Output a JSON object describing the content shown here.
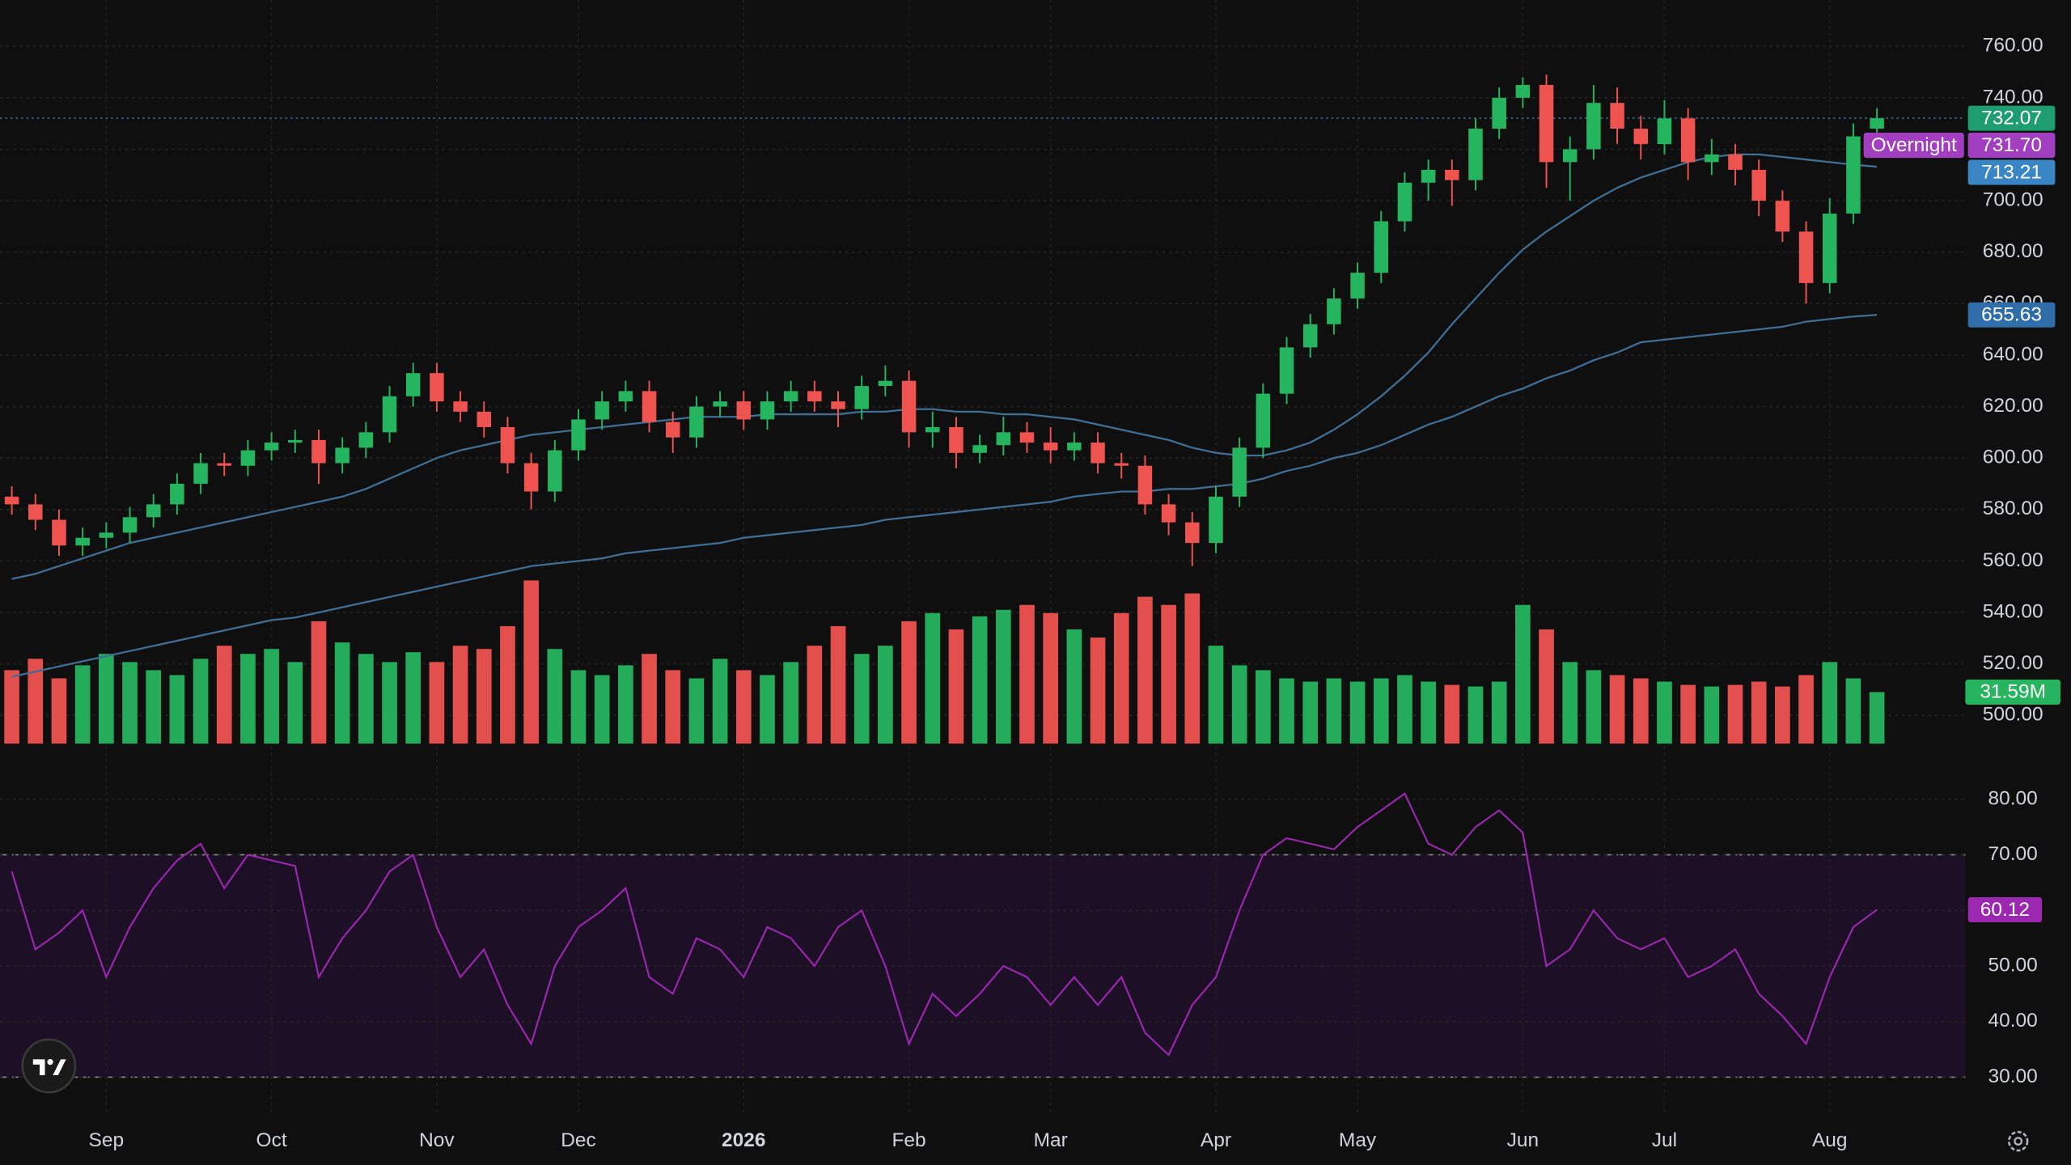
{
  "chart_data": {
    "type": "candlestick",
    "categories": [
      null,
      null,
      null,
      null,
      "Sep",
      null,
      null,
      null,
      null,
      null,
      null,
      "Oct",
      null,
      null,
      null,
      null,
      null,
      null,
      "Nov",
      null,
      null,
      null,
      null,
      null,
      "Dec",
      null,
      null,
      null,
      null,
      null,
      null,
      "2026",
      null,
      null,
      null,
      null,
      null,
      null,
      "Feb",
      null,
      null,
      null,
      null,
      null,
      "Mar",
      null,
      null,
      null,
      null,
      null,
      null,
      "Apr",
      null,
      null,
      null,
      null,
      null,
      "May",
      null,
      null,
      null,
      null,
      null,
      null,
      "Jun",
      null,
      null,
      null,
      null,
      null,
      "Jul",
      null,
      null,
      null,
      null,
      null,
      null,
      "Aug",
      null,
      null
    ],
    "open": [
      585,
      582,
      576,
      566,
      569,
      571,
      577,
      582,
      590,
      598,
      597,
      603,
      606,
      607,
      598,
      604,
      610,
      624,
      633,
      622,
      618,
      612,
      598,
      587,
      603,
      615,
      622,
      626,
      614,
      608,
      620,
      622,
      615,
      622,
      626,
      622,
      619,
      628,
      630,
      610,
      612,
      602,
      605,
      610,
      606,
      603,
      606,
      598,
      597,
      582,
      575,
      567,
      585,
      604,
      625,
      643,
      652,
      662,
      672,
      692,
      707,
      712,
      708,
      728,
      740,
      745,
      715,
      720,
      738,
      728,
      722,
      732,
      715,
      718,
      712,
      700,
      688,
      668,
      695,
      728
    ],
    "high": [
      589,
      586,
      580,
      573,
      575,
      581,
      586,
      594,
      602,
      602,
      607,
      610,
      611,
      611,
      608,
      614,
      628,
      637,
      637,
      626,
      622,
      616,
      602,
      607,
      619,
      626,
      630,
      630,
      618,
      624,
      626,
      626,
      626,
      630,
      630,
      626,
      632,
      636,
      634,
      618,
      616,
      609,
      616,
      614,
      612,
      610,
      610,
      602,
      601,
      586,
      579,
      589,
      608,
      629,
      647,
      656,
      666,
      676,
      696,
      711,
      716,
      716,
      732,
      744,
      748,
      749,
      725,
      745,
      744,
      733,
      739,
      736,
      724,
      722,
      716,
      704,
      692,
      701,
      730,
      736
    ],
    "low": [
      578,
      572,
      562,
      562,
      565,
      567,
      573,
      578,
      586,
      593,
      593,
      599,
      602,
      590,
      594,
      600,
      606,
      620,
      618,
      614,
      608,
      594,
      580,
      583,
      599,
      611,
      618,
      610,
      602,
      604,
      616,
      611,
      611,
      618,
      618,
      612,
      615,
      624,
      604,
      604,
      596,
      598,
      601,
      602,
      598,
      599,
      594,
      592,
      578,
      570,
      558,
      563,
      581,
      600,
      621,
      639,
      648,
      658,
      668,
      688,
      700,
      698,
      704,
      724,
      736,
      705,
      700,
      716,
      722,
      716,
      718,
      708,
      710,
      706,
      694,
      684,
      660,
      664,
      691,
      724
    ],
    "close": [
      582,
      576,
      566,
      569,
      571,
      577,
      582,
      590,
      598,
      597,
      603,
      606,
      607,
      598,
      604,
      610,
      624,
      633,
      622,
      618,
      612,
      598,
      587,
      603,
      615,
      622,
      626,
      614,
      608,
      620,
      622,
      615,
      622,
      626,
      622,
      619,
      628,
      630,
      610,
      612,
      602,
      605,
      610,
      606,
      603,
      606,
      598,
      597,
      582,
      575,
      567,
      585,
      604,
      625,
      643,
      652,
      662,
      672,
      692,
      707,
      712,
      708,
      728,
      740,
      745,
      715,
      720,
      738,
      728,
      722,
      732,
      715,
      718,
      712,
      700,
      688,
      668,
      695,
      725,
      732.07
    ],
    "up_color": "#26b55f",
    "down_color": "#ef5350",
    "ylim": [
      489,
      778
    ],
    "yticks": [
      {
        "value": 500,
        "label": "500.00"
      },
      {
        "value": 520,
        "label": "520.00"
      },
      {
        "value": 540,
        "label": "540.00"
      },
      {
        "value": 560,
        "label": "560.00"
      },
      {
        "value": 580,
        "label": "580.00"
      },
      {
        "value": 600,
        "label": "600.00"
      },
      {
        "value": 620,
        "label": "620.00"
      },
      {
        "value": 640,
        "label": "640.00"
      },
      {
        "value": 660,
        "label": "660.00"
      },
      {
        "value": 680,
        "label": "680.00"
      },
      {
        "value": 700,
        "label": "700.00"
      },
      {
        "value": 720,
        "label": "720.00"
      },
      {
        "value": 740,
        "label": "740.00"
      },
      {
        "value": 760,
        "label": "760.00"
      }
    ],
    "grid": true,
    "overlays": [
      {
        "color": "#3f6f95",
        "badge_color": "#3a86c4",
        "values": [
          553,
          555,
          558,
          561,
          564,
          567,
          569,
          571,
          573,
          575,
          577,
          579,
          581,
          583,
          585,
          588,
          592,
          596,
          600,
          603,
          605,
          607,
          609,
          610,
          611,
          612,
          613,
          614,
          615,
          616,
          616,
          616,
          617,
          617,
          617,
          617,
          618,
          618,
          619,
          619,
          618,
          618,
          617,
          617,
          616,
          615,
          613,
          611,
          609,
          607,
          604,
          602,
          601,
          601,
          603,
          606,
          611,
          617,
          624,
          632,
          641,
          652,
          662,
          672,
          681,
          688,
          694,
          700,
          705,
          709,
          712,
          715,
          717,
          718,
          718,
          717,
          716,
          715,
          714,
          713.21
        ]
      },
      {
        "color": "#3f6f95",
        "badge_color": "#2f6ea8",
        "values": [
          515,
          517,
          519,
          521,
          523,
          525,
          527,
          529,
          531,
          533,
          535,
          537,
          538,
          540,
          542,
          544,
          546,
          548,
          550,
          552,
          554,
          556,
          558,
          559,
          560,
          561,
          563,
          564,
          565,
          566,
          567,
          569,
          570,
          571,
          572,
          573,
          574,
          576,
          577,
          578,
          579,
          580,
          581,
          582,
          583,
          585,
          586,
          587,
          587,
          588,
          588,
          589,
          590,
          592,
          595,
          597,
          600,
          602,
          605,
          609,
          613,
          616,
          620,
          624,
          627,
          631,
          634,
          638,
          641,
          645,
          646,
          647,
          648,
          649,
          650,
          651,
          653,
          654,
          655,
          655.63
        ]
      }
    ],
    "price_line_color": "#3d6fa0",
    "last_badge_color": "#1e9e6e",
    "overnight": {
      "label": "Overnight",
      "price": {
        "value": 731.7,
        "label": "731.70"
      },
      "color": "#a23fc0"
    },
    "volume": {
      "values": [
        45,
        52,
        40,
        48,
        55,
        50,
        45,
        42,
        52,
        60,
        55,
        58,
        50,
        75,
        62,
        55,
        50,
        56,
        50,
        60,
        58,
        72,
        100,
        58,
        45,
        42,
        48,
        55,
        45,
        40,
        52,
        45,
        42,
        50,
        60,
        72,
        55,
        60,
        75,
        80,
        70,
        78,
        82,
        85,
        80,
        70,
        65,
        80,
        90,
        85,
        92,
        60,
        48,
        45,
        40,
        38,
        40,
        38,
        40,
        42,
        38,
        36,
        35,
        38,
        85,
        70,
        50,
        45,
        42,
        40,
        38,
        36,
        35,
        36,
        38,
        35,
        42,
        50,
        40,
        31.59
      ],
      "ylim": [
        0,
        140
      ],
      "last": {
        "value": 31.59,
        "label": "31.59M"
      }
    },
    "rsi": {
      "values": [
        67,
        53,
        56,
        60,
        48,
        57,
        64,
        69,
        72,
        64,
        70,
        69,
        68,
        48,
        55,
        60,
        67,
        70,
        57,
        48,
        53,
        43,
        36,
        50,
        57,
        60,
        64,
        48,
        45,
        55,
        53,
        48,
        57,
        55,
        50,
        57,
        60,
        50,
        36,
        45,
        41,
        45,
        50,
        48,
        43,
        48,
        43,
        48,
        38,
        34,
        43,
        48,
        60,
        70,
        73,
        72,
        71,
        75,
        78,
        81,
        72,
        70,
        75,
        78,
        74,
        50,
        53,
        60,
        55,
        53,
        55,
        48,
        50,
        53,
        45,
        41,
        36,
        48,
        57,
        60.12
      ],
      "color": "#9c27b0",
      "badge_color": "#9c27b0",
      "ylim": [
        23,
        90
      ],
      "yticks": [
        {
          "value": 30,
          "label": "30.00"
        },
        {
          "value": 40,
          "label": "40.00"
        },
        {
          "value": 50,
          "label": "50.00"
        },
        {
          "value": 60,
          "label": "60.00"
        },
        {
          "value": 70,
          "label": "70.00"
        },
        {
          "value": 80,
          "label": "80.00"
        }
      ],
      "bands": [
        30,
        70
      ],
      "band_fill": "#1d1026"
    }
  }
}
